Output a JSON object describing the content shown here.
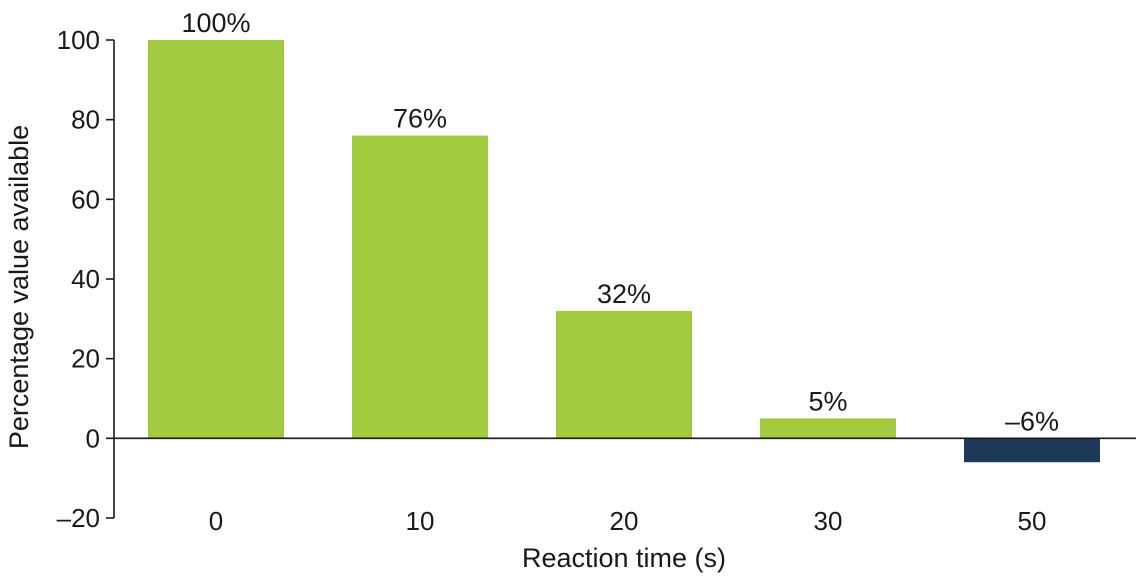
{
  "chart_data": {
    "type": "bar",
    "title": "",
    "xlabel": "Reaction time (s)",
    "ylabel": "Percentage value available",
    "categories": [
      "0",
      "10",
      "20",
      "30",
      "50"
    ],
    "values": [
      100,
      76,
      32,
      5,
      -6
    ],
    "data_labels": [
      "100%",
      "76%",
      "32%",
      "5%",
      "–6%"
    ],
    "ylim": [
      -20,
      100
    ],
    "yticks": [
      -20,
      0,
      20,
      40,
      60,
      80,
      100
    ],
    "ytick_labels": [
      "–20",
      "0",
      "20",
      "40",
      "60",
      "80",
      "100"
    ],
    "grid": false,
    "colors": {
      "positive": "#a2cb3f",
      "negative": "#1b3a57",
      "axis": "#1a1a1a"
    }
  }
}
